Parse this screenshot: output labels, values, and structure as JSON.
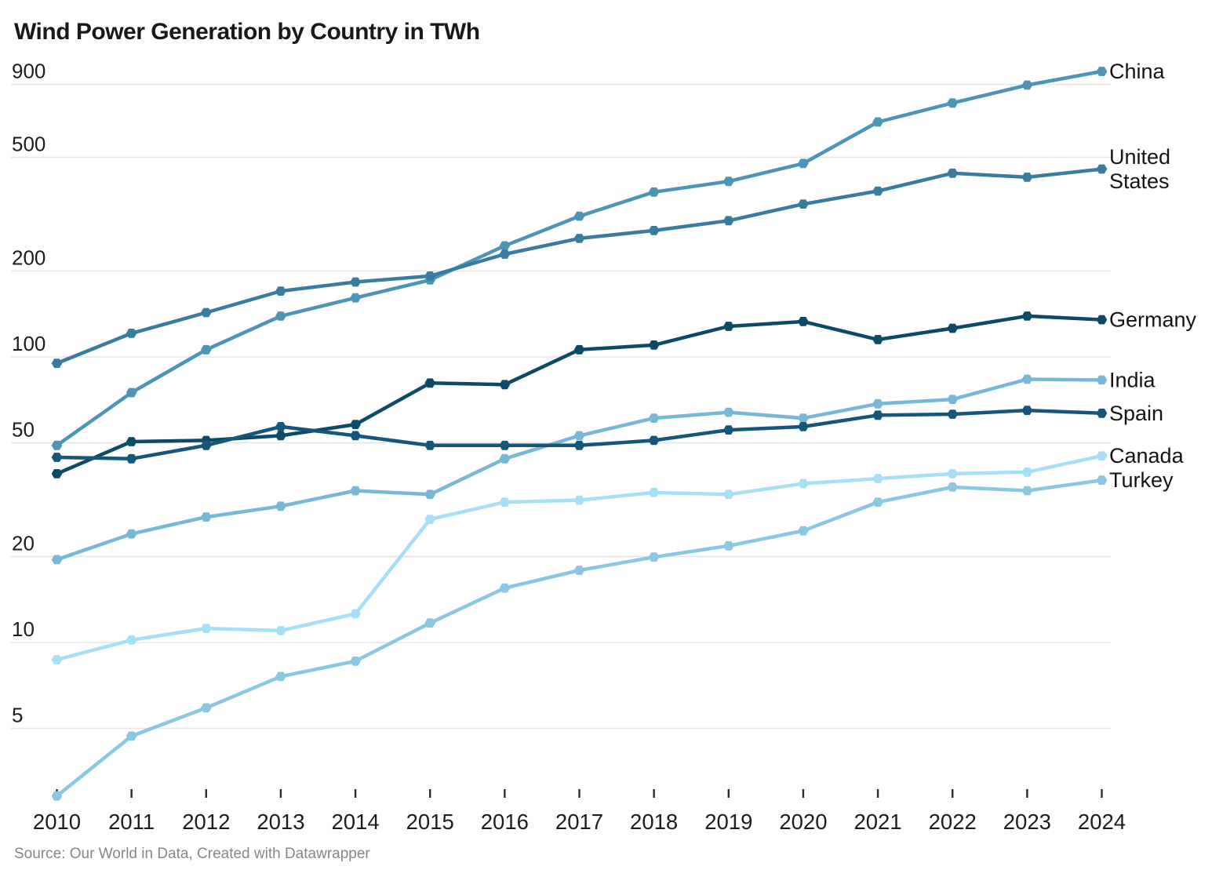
{
  "title": "Wind Power Generation by Country in TWh",
  "source": "Source: Our World in Data, Created with Datawrapper",
  "colors": {
    "background": "#FFFFFF",
    "grid": "#E6E6E6",
    "axis_text": "#1D1D1D",
    "tick_mark": "#2B2B2B",
    "series_label_text": "#141414",
    "source_text": "#878787"
  },
  "chart_data": {
    "type": "line",
    "title": "Wind Power Generation by Country in TWh",
    "xlabel": "",
    "ylabel": "TWh",
    "y_scale": "log",
    "grid": "horizontal",
    "legend_position": "right-edge-labels",
    "x": [
      2010,
      2011,
      2012,
      2013,
      2014,
      2015,
      2016,
      2017,
      2018,
      2019,
      2020,
      2021,
      2022,
      2023,
      2024
    ],
    "x_tick_labels": [
      "2010",
      "2011",
      "2012",
      "2013",
      "2014",
      "2015",
      "2016",
      "2017",
      "2018",
      "2019",
      "2020",
      "2021",
      "2022",
      "2023",
      "2024"
    ],
    "y_ticks": [
      900,
      500,
      200,
      100,
      50,
      20,
      10,
      5
    ],
    "ylim": [
      2.7,
      1010
    ],
    "series": [
      {
        "name": "China",
        "label_lines": [
          "China"
        ],
        "color": "#4D94B6",
        "values": [
          49,
          75,
          106,
          139,
          161,
          186,
          245,
          311,
          378,
          412,
          476,
          665,
          775,
          895,
          1000
        ]
      },
      {
        "name": "United States",
        "label_lines": [
          "United",
          "States"
        ],
        "color": "#3A7CA0",
        "values": [
          95,
          121,
          143,
          170,
          183,
          192,
          229,
          260,
          277,
          300,
          343,
          381,
          440,
          426,
          455
        ]
      },
      {
        "name": "Germany",
        "label_lines": [
          "Germany"
        ],
        "color": "#0D4A66",
        "values": [
          39,
          50.5,
          51,
          53,
          58,
          81,
          80,
          106,
          110,
          128,
          133,
          115,
          126,
          139,
          135
        ]
      },
      {
        "name": "India",
        "label_lines": [
          "India"
        ],
        "color": "#79B7D7",
        "values": [
          19.5,
          24,
          27.5,
          30,
          34,
          33,
          44,
          53,
          61,
          64,
          61,
          68.5,
          71,
          83.5,
          83
        ]
      },
      {
        "name": "Spain",
        "label_lines": [
          "Spain"
        ],
        "color": "#16567A",
        "values": [
          44.5,
          44,
          49,
          57,
          53,
          49,
          49,
          49,
          51,
          55.5,
          57,
          62.5,
          63,
          65,
          63.5
        ]
      },
      {
        "name": "Canada",
        "label_lines": [
          "Canada"
        ],
        "color": "#A7DFF7",
        "values": [
          8.7,
          10.2,
          11.2,
          11,
          12.6,
          27,
          31,
          31.5,
          33.5,
          33,
          36,
          37.5,
          39,
          39.5,
          45
        ]
      },
      {
        "name": "Turkey",
        "label_lines": [
          "Turkey"
        ],
        "color": "#8BC6E3",
        "values": [
          2.9,
          4.7,
          5.9,
          7.6,
          8.6,
          11.7,
          15.5,
          17.9,
          19.9,
          21.8,
          24.6,
          31,
          35,
          34,
          37
        ]
      }
    ]
  }
}
